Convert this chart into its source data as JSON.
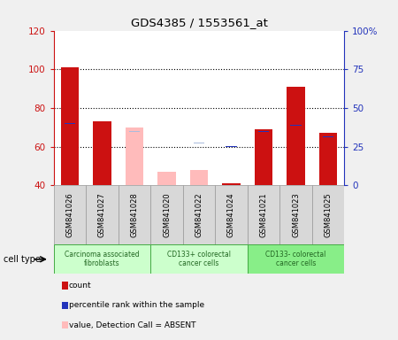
{
  "title": "GDS4385 / 1553561_at",
  "samples": [
    "GSM841026",
    "GSM841027",
    "GSM841028",
    "GSM841020",
    "GSM841022",
    "GSM841024",
    "GSM841021",
    "GSM841023",
    "GSM841025"
  ],
  "group_defs": [
    {
      "label": "Carcinoma associated\nfibroblasts",
      "indices": [
        0,
        1,
        2
      ],
      "color": "#ccffcc",
      "edge": "#44aa44"
    },
    {
      "label": "CD133+ colorectal\ncancer cells",
      "indices": [
        3,
        4,
        5
      ],
      "color": "#ccffcc",
      "edge": "#44aa44"
    },
    {
      "label": "CD133- colorectal\ncancer cells",
      "indices": [
        6,
        7,
        8
      ],
      "color": "#88ee88",
      "edge": "#44aa44"
    }
  ],
  "count_values": [
    101,
    73,
    null,
    null,
    null,
    41,
    69,
    91,
    67
  ],
  "rank_values": [
    72,
    69,
    null,
    null,
    null,
    60,
    68,
    71,
    65
  ],
  "value_absent": [
    null,
    null,
    70,
    47,
    48,
    null,
    null,
    null,
    null
  ],
  "rank_absent": [
    null,
    null,
    68,
    63,
    62,
    null,
    null,
    null,
    null
  ],
  "ylim": [
    40,
    120
  ],
  "y2lim": [
    0,
    100
  ],
  "yticks": [
    40,
    60,
    80,
    100,
    120
  ],
  "y2ticks": [
    0,
    25,
    50,
    75,
    100
  ],
  "y2ticklabels": [
    "0",
    "25",
    "50",
    "75",
    "100%"
  ],
  "bar_width": 0.55,
  "rank_sq_size": 0.35,
  "count_color": "#cc1111",
  "rank_color": "#2233bb",
  "value_absent_color": "#ffbbbb",
  "rank_absent_color": "#aabbdd",
  "legend_items": [
    {
      "label": "count",
      "color": "#cc1111"
    },
    {
      "label": "percentile rank within the sample",
      "color": "#2233bb"
    },
    {
      "label": "value, Detection Call = ABSENT",
      "color": "#ffbbbb"
    },
    {
      "label": "rank, Detection Call = ABSENT",
      "color": "#aabbdd"
    }
  ]
}
